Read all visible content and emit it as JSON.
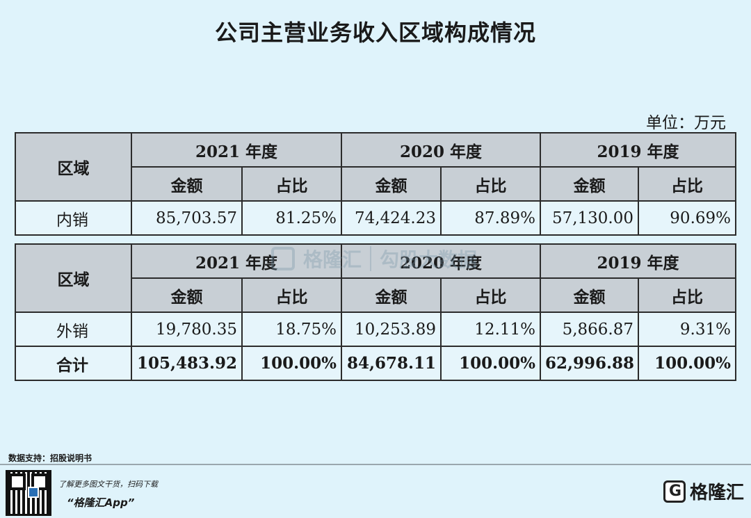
{
  "title": "公司主营业务收入区域构成情况",
  "unit": "单位：万元",
  "table_top": {
    "region_header": "区域",
    "years": [
      "2021 年度",
      "2020 年度",
      "2019 年度"
    ],
    "amount_label": "金额",
    "share_label": "占比",
    "rows": [
      {
        "region": "内销",
        "values": [
          "85,703.57",
          "81.25%",
          "74,424.23",
          "87.89%",
          "57,130.00",
          "90.69%"
        ]
      }
    ]
  },
  "table_bottom": {
    "region_header": "区域",
    "years": [
      "2021 年度",
      "2020 年度",
      "2019 年度"
    ],
    "amount_label": "金额",
    "share_label": "占比",
    "rows": [
      {
        "region": "外销",
        "values": [
          "19,780.35",
          "18.75%",
          "10,253.89",
          "12.11%",
          "5,866.87",
          "9.31%"
        ]
      },
      {
        "region": "合计",
        "values": [
          "105,483.92",
          "100.00%",
          "84,678.11",
          "100.00%",
          "62,996.88",
          "100.00%"
        ]
      }
    ]
  },
  "watermark": {
    "brand": "格隆汇",
    "right": "勾股大数据"
  },
  "footer": {
    "source": "数据支持：招股说明书",
    "promo_line": "了解更多图文干货，扫码下载",
    "app_name": "“格隆汇App”",
    "brand": "格隆汇"
  }
}
